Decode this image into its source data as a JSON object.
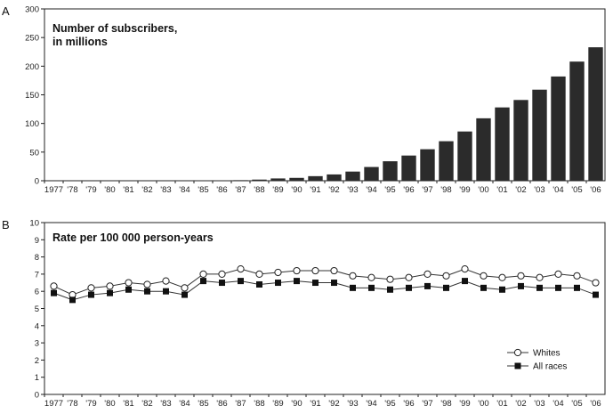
{
  "chart_data": [
    {
      "panel": "A",
      "type": "bar",
      "title_lines": [
        "Number of subscribers,",
        "in millions"
      ],
      "categories": [
        "1977",
        "'78",
        "'79",
        "'80",
        "'81",
        "'82",
        "'83",
        "'84",
        "'85",
        "'86",
        "'87",
        "'88",
        "'89",
        "'90",
        "'91",
        "'92",
        "'93",
        "'94",
        "'95",
        "'96",
        "'97",
        "'98",
        "'99",
        "'00",
        "'01",
        "'02",
        "'03",
        "'04",
        "'05",
        "'06"
      ],
      "values": [
        0,
        0,
        0,
        0,
        0,
        0,
        0,
        0,
        0.3,
        0.7,
        1,
        2,
        4,
        5,
        8,
        11,
        16,
        24,
        34,
        44,
        55,
        69,
        86,
        109,
        128,
        141,
        159,
        182,
        208,
        233
      ],
      "ylim": [
        0,
        300
      ],
      "yticks": [
        0,
        50,
        100,
        150,
        200,
        250,
        300
      ],
      "bar_color": "#2b2b2b"
    },
    {
      "panel": "B",
      "type": "line",
      "title": "Rate per 100 000 person-years",
      "categories": [
        "1977",
        "'78",
        "'79",
        "'80",
        "'81",
        "'82",
        "'83",
        "'84",
        "'85",
        "'86",
        "'87",
        "'88",
        "'89",
        "'90",
        "'91",
        "'92",
        "'93",
        "'94",
        "'95",
        "'96",
        "'97",
        "'98",
        "'99",
        "'00",
        "'01",
        "'02",
        "'03",
        "'04",
        "'05",
        "'06"
      ],
      "ylim": [
        0,
        10
      ],
      "yticks": [
        0,
        1,
        2,
        3,
        4,
        5,
        6,
        7,
        8,
        9,
        10
      ],
      "legend_position": "bottom-right",
      "series": [
        {
          "name": "Whites",
          "marker": "open-circle",
          "values": [
            6.3,
            5.8,
            6.2,
            6.3,
            6.5,
            6.4,
            6.6,
            6.2,
            7.0,
            7.0,
            7.3,
            7.0,
            7.1,
            7.2,
            7.2,
            7.2,
            6.9,
            6.8,
            6.7,
            6.8,
            7.0,
            6.9,
            7.3,
            6.9,
            6.8,
            6.9,
            6.8,
            7.0,
            6.9,
            6.5
          ]
        },
        {
          "name": "All races",
          "marker": "filled-square",
          "values": [
            5.9,
            5.5,
            5.8,
            5.9,
            6.1,
            6.0,
            6.0,
            5.8,
            6.6,
            6.5,
            6.6,
            6.4,
            6.5,
            6.6,
            6.5,
            6.5,
            6.2,
            6.2,
            6.1,
            6.2,
            6.3,
            6.2,
            6.6,
            6.2,
            6.1,
            6.3,
            6.2,
            6.2,
            6.2,
            5.8
          ]
        }
      ]
    }
  ]
}
